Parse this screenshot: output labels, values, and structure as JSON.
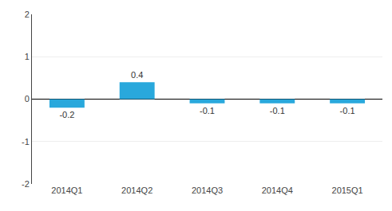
{
  "chart_data": {
    "type": "bar",
    "categories": [
      "2014Q1",
      "2014Q2",
      "2014Q3",
      "2014Q4",
      "2015Q1"
    ],
    "values": [
      -0.2,
      0.4,
      -0.1,
      -0.1,
      -0.1
    ],
    "color": "#29a8dc",
    "ylim": [
      -2,
      2
    ],
    "yticks": [
      -2,
      -1,
      0,
      1,
      2
    ],
    "grid": true,
    "data_labels": true
  }
}
